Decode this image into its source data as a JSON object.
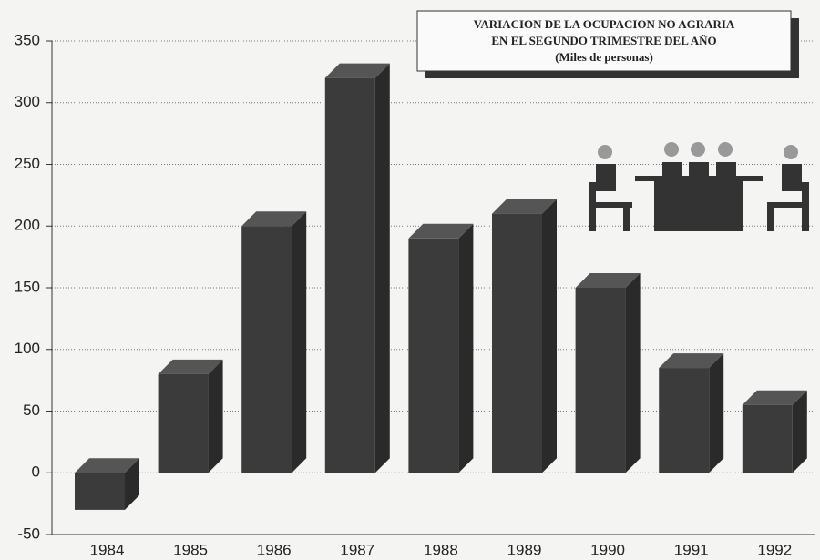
{
  "chart_data": {
    "type": "bar3d",
    "title": [
      "VARIACION DE LA OCUPACION NO AGRARIA",
      "EN EL SEGUNDO TRIMESTRE DEL AÑO"
    ],
    "subtitle": "(Miles de personas)",
    "categories": [
      "1984",
      "1985",
      "1986",
      "1987",
      "1988",
      "1989",
      "1990",
      "1991",
      "1992"
    ],
    "values": [
      -30,
      80,
      200,
      320,
      190,
      210,
      150,
      85,
      55
    ],
    "color": "#3b3b3b",
    "ylim": [
      -50,
      350
    ],
    "yticks": [
      -50,
      0,
      50,
      100,
      150,
      200,
      250,
      300,
      350
    ],
    "grid": true
  }
}
